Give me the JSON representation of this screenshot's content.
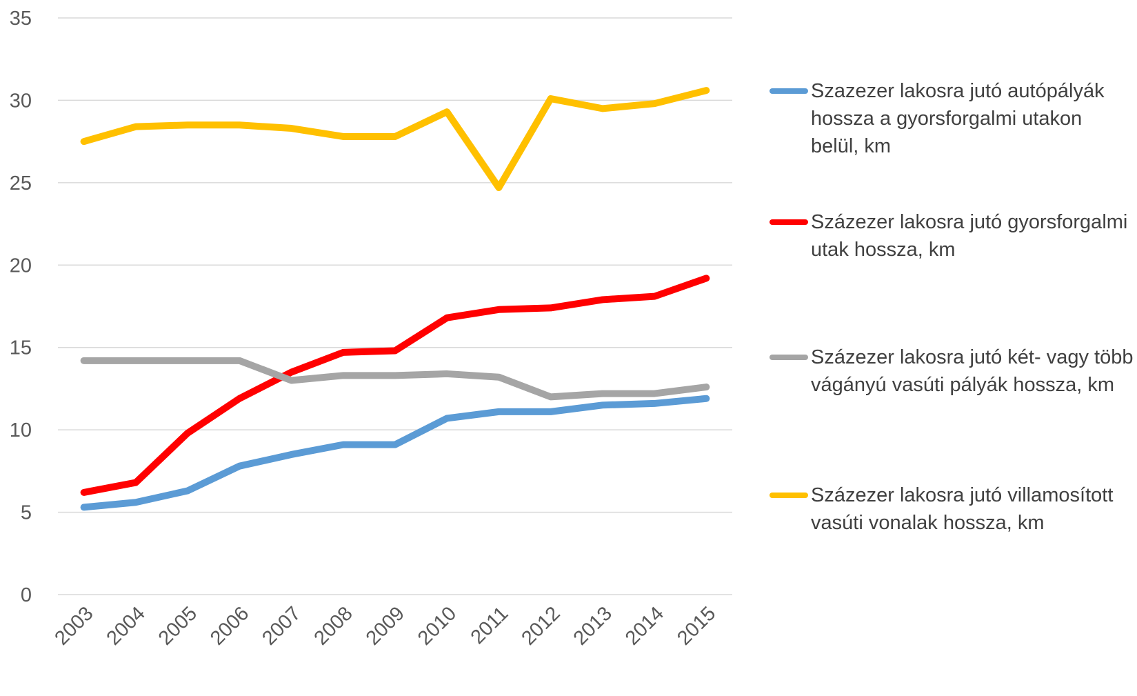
{
  "chart_data": {
    "type": "line",
    "categories": [
      "2003",
      "2004",
      "2005",
      "2006",
      "2007",
      "2008",
      "2009",
      "2010",
      "2011",
      "2012",
      "2013",
      "2014",
      "2015"
    ],
    "series": [
      {
        "name": "Szazezer lakosra jutó autópályák hossza a gyorsforgalmi utakon belül, km",
        "color": "#5b9bd5",
        "values": [
          5.3,
          5.6,
          6.3,
          7.8,
          8.5,
          9.1,
          9.1,
          10.7,
          11.1,
          11.1,
          11.5,
          11.6,
          11.9
        ]
      },
      {
        "name": "Százezer lakosra jutó gyorsforgalmi utak hossza, km",
        "color": "#ff0000",
        "values": [
          6.2,
          6.8,
          9.8,
          11.9,
          13.5,
          14.7,
          14.8,
          16.8,
          17.3,
          17.4,
          17.9,
          18.1,
          19.2
        ]
      },
      {
        "name": "Százezer lakosra jutó két- vagy több vágányú vasúti pályák hossza, km",
        "color": "#a5a5a5",
        "values": [
          14.2,
          14.2,
          14.2,
          14.2,
          13.0,
          13.3,
          13.3,
          13.4,
          13.2,
          12.0,
          12.2,
          12.2,
          12.6
        ]
      },
      {
        "name": "Százezer lakosra jutó villamosított vasúti vonalak hossza, km",
        "color": "#ffc000",
        "values": [
          27.5,
          28.4,
          28.5,
          28.5,
          28.3,
          27.8,
          27.8,
          29.3,
          24.7,
          30.1,
          29.5,
          29.8,
          30.6
        ]
      }
    ],
    "ylim": [
      0,
      35
    ],
    "yticks": [
      0,
      5,
      10,
      15,
      20,
      25,
      30,
      35
    ],
    "grid": true,
    "legend": "right"
  }
}
